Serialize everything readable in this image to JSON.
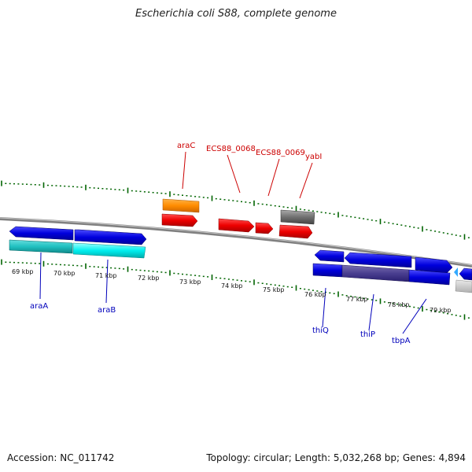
{
  "title": "Escherichia coli S88, complete genome",
  "footer": {
    "accession": "Accession: NC_011742",
    "stats": "Topology: circular; Length: 5,032,268 bp; Genes: 4,894"
  },
  "kbp_labels": [
    "69 kbp",
    "70 kbp",
    "71 kbp",
    "72 kbp",
    "73 kbp",
    "74 kbp",
    "75 kbp",
    "76 kbp",
    "77 kbp",
    "78 kbp",
    "79 kbp"
  ],
  "gene_labels_top": [
    "araC",
    "ECS88_0068",
    "ECS88_0069",
    "yabI"
  ],
  "gene_labels_bottom": [
    "araA",
    "araB",
    "thiQ",
    "thiP",
    "tbpA"
  ],
  "colors": {
    "top_labels": "#cc0000",
    "bottom_labels": "#0000bb",
    "ticks": "#006400",
    "backbone": "#808080",
    "feature_red": "#ee0000",
    "feature_blue": "#0000dd",
    "feature_cyan": "#00eeee",
    "feature_orange": "#ff8c00",
    "feature_gray": "#6e6e6e"
  }
}
